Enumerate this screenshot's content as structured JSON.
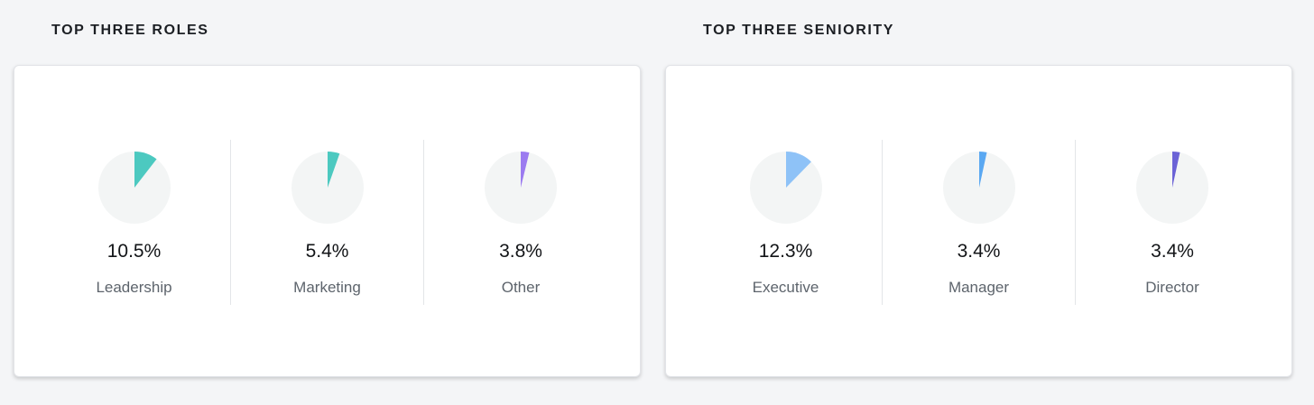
{
  "chart_data": [
    {
      "type": "pie",
      "title": "TOP THREE ROLES",
      "items": [
        {
          "label": "Leadership",
          "value": 10.5,
          "display": "10.5%",
          "color": "#4cc9c0"
        },
        {
          "label": "Marketing",
          "value": 5.4,
          "display": "5.4%",
          "color": "#4cc9c0"
        },
        {
          "label": "Other",
          "value": 3.8,
          "display": "3.8%",
          "color": "#9b7bf0"
        }
      ]
    },
    {
      "type": "pie",
      "title": "TOP THREE SENIORITY",
      "items": [
        {
          "label": "Executive",
          "value": 12.3,
          "display": "12.3%",
          "color": "#8ec2f7"
        },
        {
          "label": "Manager",
          "value": 3.4,
          "display": "3.4%",
          "color": "#5aa8f2"
        },
        {
          "label": "Director",
          "value": 3.4,
          "display": "3.4%",
          "color": "#6b63d6"
        }
      ]
    }
  ],
  "pie_background_color": "#f3f5f5"
}
